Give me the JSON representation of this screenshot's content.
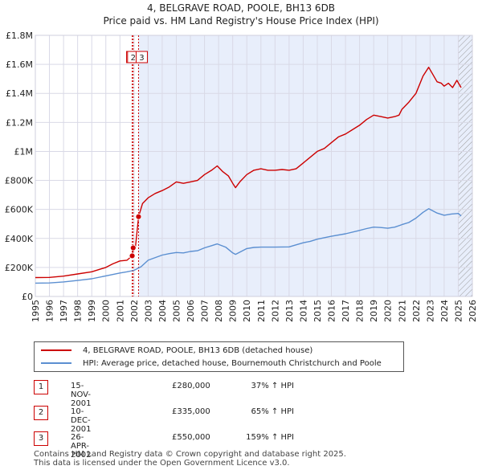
{
  "header": {
    "title": "4, BELGRAVE ROAD, POOLE, BH13 6DB",
    "subtitle": "Price paid vs. HM Land Registry's House Price Index (HPI)"
  },
  "chart_data": {
    "type": "line",
    "x_range": [
      1995,
      2026
    ],
    "y_range": [
      0,
      1800000
    ],
    "y_ticks": [
      {
        "value": 0,
        "label": "£0"
      },
      {
        "value": 200000,
        "label": "£200K"
      },
      {
        "value": 400000,
        "label": "£400K"
      },
      {
        "value": 600000,
        "label": "£600K"
      },
      {
        "value": 800000,
        "label": "£800K"
      },
      {
        "value": 1000000,
        "label": "£1M"
      },
      {
        "value": 1200000,
        "label": "£1.2M"
      },
      {
        "value": 1400000,
        "label": "£1.4M"
      },
      {
        "value": 1600000,
        "label": "£1.6M"
      },
      {
        "value": 1800000,
        "label": "£1.8M"
      }
    ],
    "x_ticks": [
      "1995",
      "1996",
      "1997",
      "1998",
      "1999",
      "2000",
      "2001",
      "2002",
      "2003",
      "2004",
      "2005",
      "2006",
      "2007",
      "2008",
      "2009",
      "2010",
      "2011",
      "2012",
      "2013",
      "2014",
      "2015",
      "2016",
      "2017",
      "2018",
      "2019",
      "2020",
      "2021",
      "2022",
      "2023",
      "2024",
      "2025",
      "2026"
    ],
    "colors": {
      "property": "#cc0000",
      "hpi": "#5b8fd1",
      "shade": "#e8eefb",
      "grid": "#d9d9e6"
    },
    "shaded_from": 2002.32,
    "hatched_from": 2025.0,
    "series": [
      {
        "name": "4, BELGRAVE ROAD, POOLE, BH13 6DB (detached house)",
        "color": "#cc0000",
        "points": [
          [
            1995.0,
            130000
          ],
          [
            1996.0,
            131000
          ],
          [
            1997.0,
            140000
          ],
          [
            1998.0,
            155000
          ],
          [
            1999.0,
            170000
          ],
          [
            2000.0,
            200000
          ],
          [
            2000.5,
            225000
          ],
          [
            2001.0,
            245000
          ],
          [
            2001.5,
            250000
          ],
          [
            2001.87,
            280000
          ],
          [
            2001.94,
            335000
          ],
          [
            2002.1,
            340000
          ],
          [
            2002.32,
            550000
          ],
          [
            2002.6,
            640000
          ],
          [
            2003.0,
            680000
          ],
          [
            2003.5,
            710000
          ],
          [
            2004.0,
            730000
          ],
          [
            2004.5,
            755000
          ],
          [
            2005.0,
            790000
          ],
          [
            2005.5,
            780000
          ],
          [
            2006.0,
            790000
          ],
          [
            2006.5,
            800000
          ],
          [
            2007.0,
            840000
          ],
          [
            2007.5,
            870000
          ],
          [
            2007.9,
            900000
          ],
          [
            2008.3,
            860000
          ],
          [
            2008.7,
            830000
          ],
          [
            2009.0,
            780000
          ],
          [
            2009.2,
            750000
          ],
          [
            2009.5,
            790000
          ],
          [
            2010.0,
            840000
          ],
          [
            2010.5,
            870000
          ],
          [
            2011.0,
            880000
          ],
          [
            2011.5,
            870000
          ],
          [
            2012.0,
            870000
          ],
          [
            2012.5,
            875000
          ],
          [
            2013.0,
            870000
          ],
          [
            2013.5,
            880000
          ],
          [
            2014.0,
            920000
          ],
          [
            2014.5,
            960000
          ],
          [
            2015.0,
            1000000
          ],
          [
            2015.5,
            1020000
          ],
          [
            2016.0,
            1060000
          ],
          [
            2016.5,
            1100000
          ],
          [
            2017.0,
            1120000
          ],
          [
            2017.5,
            1150000
          ],
          [
            2018.0,
            1180000
          ],
          [
            2018.5,
            1220000
          ],
          [
            2019.0,
            1250000
          ],
          [
            2019.5,
            1240000
          ],
          [
            2020.0,
            1230000
          ],
          [
            2020.5,
            1240000
          ],
          [
            2020.8,
            1250000
          ],
          [
            2021.0,
            1290000
          ],
          [
            2021.5,
            1340000
          ],
          [
            2022.0,
            1400000
          ],
          [
            2022.5,
            1520000
          ],
          [
            2022.9,
            1580000
          ],
          [
            2023.2,
            1530000
          ],
          [
            2023.5,
            1480000
          ],
          [
            2023.8,
            1470000
          ],
          [
            2024.0,
            1450000
          ],
          [
            2024.3,
            1470000
          ],
          [
            2024.6,
            1440000
          ],
          [
            2024.9,
            1490000
          ],
          [
            2025.2,
            1440000
          ]
        ]
      },
      {
        "name": "HPI: Average price, detached house, Bournemouth Christchurch and Poole",
        "color": "#5b8fd1",
        "points": [
          [
            1995.0,
            92000
          ],
          [
            1996.0,
            93000
          ],
          [
            1997.0,
            100000
          ],
          [
            1998.0,
            110000
          ],
          [
            1999.0,
            122000
          ],
          [
            2000.0,
            142000
          ],
          [
            2001.0,
            162000
          ],
          [
            2001.5,
            170000
          ],
          [
            2002.0,
            180000
          ],
          [
            2002.5,
            205000
          ],
          [
            2003.0,
            250000
          ],
          [
            2004.0,
            285000
          ],
          [
            2004.5,
            295000
          ],
          [
            2005.0,
            303000
          ],
          [
            2005.5,
            300000
          ],
          [
            2006.0,
            310000
          ],
          [
            2006.5,
            315000
          ],
          [
            2007.0,
            335000
          ],
          [
            2007.5,
            350000
          ],
          [
            2007.9,
            362000
          ],
          [
            2008.5,
            340000
          ],
          [
            2009.0,
            300000
          ],
          [
            2009.2,
            290000
          ],
          [
            2009.6,
            310000
          ],
          [
            2010.0,
            330000
          ],
          [
            2010.5,
            338000
          ],
          [
            2011.0,
            340000
          ],
          [
            2012.0,
            340000
          ],
          [
            2013.0,
            342000
          ],
          [
            2014.0,
            370000
          ],
          [
            2014.5,
            380000
          ],
          [
            2015.0,
            395000
          ],
          [
            2016.0,
            415000
          ],
          [
            2017.0,
            432000
          ],
          [
            2018.0,
            455000
          ],
          [
            2018.5,
            468000
          ],
          [
            2019.0,
            478000
          ],
          [
            2019.5,
            475000
          ],
          [
            2020.0,
            470000
          ],
          [
            2020.5,
            478000
          ],
          [
            2021.0,
            495000
          ],
          [
            2021.5,
            510000
          ],
          [
            2022.0,
            540000
          ],
          [
            2022.5,
            580000
          ],
          [
            2022.9,
            605000
          ],
          [
            2023.2,
            590000
          ],
          [
            2023.5,
            575000
          ],
          [
            2024.0,
            560000
          ],
          [
            2024.5,
            568000
          ],
          [
            2025.0,
            572000
          ],
          [
            2025.2,
            555000
          ]
        ]
      }
    ],
    "sales": [
      {
        "label": "1",
        "x": 2001.87,
        "value": 280000
      },
      {
        "label": "2",
        "x": 2001.94,
        "value": 335000
      },
      {
        "label": "3",
        "x": 2002.32,
        "value": 550000
      }
    ]
  },
  "legend": {
    "property": "4, BELGRAVE ROAD, POOLE, BH13 6DB (detached house)",
    "hpi": "HPI: Average price, detached house, Bournemouth Christchurch and Poole"
  },
  "transactions": [
    {
      "num": "1",
      "date": "15-NOV-2001",
      "price": "£280,000",
      "hpi": "37% ↑ HPI"
    },
    {
      "num": "2",
      "date": "10-DEC-2001",
      "price": "£335,000",
      "hpi": "65% ↑ HPI"
    },
    {
      "num": "3",
      "date": "26-APR-2002",
      "price": "£550,000",
      "hpi": "159% ↑ HPI"
    }
  ],
  "footer": {
    "line1": "Contains HM Land Registry data © Crown copyright and database right 2025.",
    "line2": "This data is licensed under the Open Government Licence v3.0."
  }
}
